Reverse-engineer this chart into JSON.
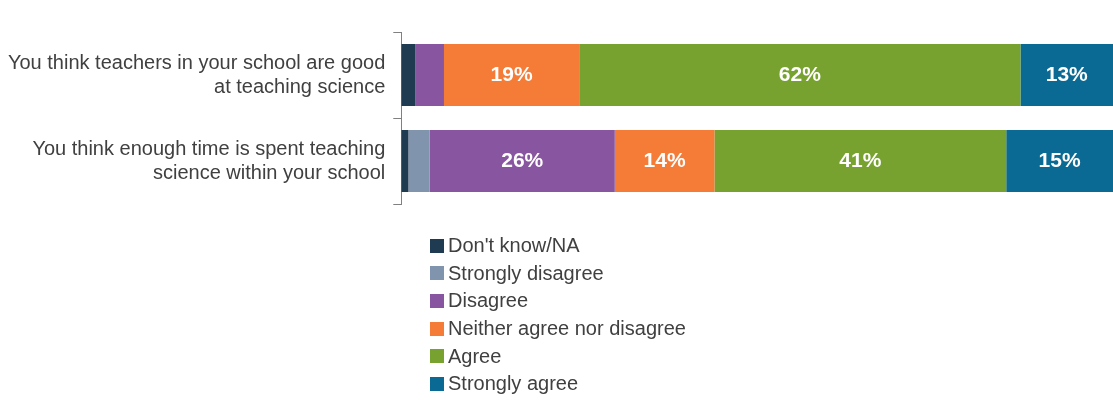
{
  "chart_data": {
    "type": "bar",
    "orientation": "horizontal",
    "stacked": true,
    "legend": "bottom",
    "tick_labels": "y",
    "xlim": [
      0,
      100
    ],
    "categories": [
      "You think teachers in your school are good at teaching science",
      "You think enough time is spent teaching science within your school"
    ],
    "series": [
      {
        "name": "Don't know/NA",
        "color": "#1f3b52",
        "values": [
          2,
          1
        ],
        "value_labels": [
          null,
          null
        ]
      },
      {
        "name": "Strongly disagree",
        "color": "#8095ad",
        "values": [
          0,
          3
        ],
        "value_labels": [
          null,
          null
        ]
      },
      {
        "name": "Disagree",
        "color": "#8856a0",
        "values": [
          4,
          26
        ],
        "value_labels": [
          null,
          "26%"
        ]
      },
      {
        "name": "Neither agree nor disagree",
        "color": "#f47c36",
        "values": [
          19,
          14
        ],
        "value_labels": [
          "19%",
          "14%"
        ]
      },
      {
        "name": "Agree",
        "color": "#78a22f",
        "values": [
          62,
          41
        ],
        "value_labels": [
          "62%",
          "41%"
        ]
      },
      {
        "name": "Strongly agree",
        "color": "#0b6a94",
        "values": [
          13,
          15
        ],
        "value_labels": [
          "13%",
          "15%"
        ]
      }
    ]
  }
}
